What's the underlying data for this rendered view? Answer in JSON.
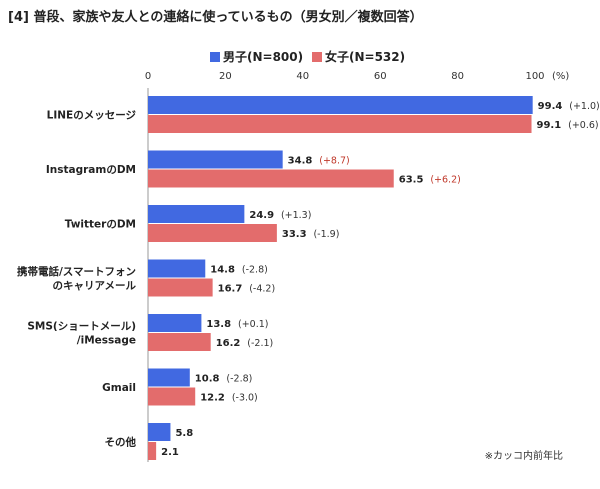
{
  "chart_data": {
    "type": "bar",
    "orientation": "horizontal",
    "title": "[4] 普段、家族や友人との連絡に使っているもの（男女別／複数回答）",
    "categories": [
      [
        "LINEのメッセージ"
      ],
      [
        "InstagramのDM"
      ],
      [
        "TwitterのDM"
      ],
      [
        "携帯電話/スマートフォン",
        "のキャリアメール"
      ],
      [
        "SMS(ショートメール)",
        "/iMessage"
      ],
      [
        "Gmail"
      ],
      [
        "その他"
      ]
    ],
    "series": [
      {
        "name": "男子(N=800)",
        "color": "#4169e1",
        "values": [
          99.4,
          34.8,
          24.9,
          14.8,
          13.8,
          10.8,
          5.8
        ],
        "value_labels": [
          "99.4",
          "34.8",
          "24.9",
          "14.8",
          "13.8",
          "10.8",
          "5.8"
        ],
        "changes": [
          "(+1.0)",
          "(+8.7)",
          "(+1.3)",
          "(-2.8)",
          "(+0.1)",
          "(-2.8)",
          ""
        ]
      },
      {
        "name": "女子(N=532)",
        "color": "#e36c6c",
        "values": [
          99.1,
          63.5,
          33.3,
          16.7,
          16.2,
          12.2,
          2.1
        ],
        "value_labels": [
          "99.1",
          "63.5",
          "33.3",
          "16.7",
          "16.2",
          "12.2",
          "2.1"
        ],
        "changes": [
          "(+0.6)",
          "(+6.2)",
          "(-1.9)",
          "(-4.2)",
          "(-2.1)",
          "(-3.0)",
          ""
        ]
      }
    ],
    "highlight_change_color": "#c0392b",
    "xlim": [
      0,
      100
    ],
    "ticks": [
      "0",
      "20",
      "40",
      "60",
      "80",
      "100"
    ],
    "unit": "(%)",
    "note": "※カッコ内前年比",
    "grid": false,
    "legend": "top"
  }
}
